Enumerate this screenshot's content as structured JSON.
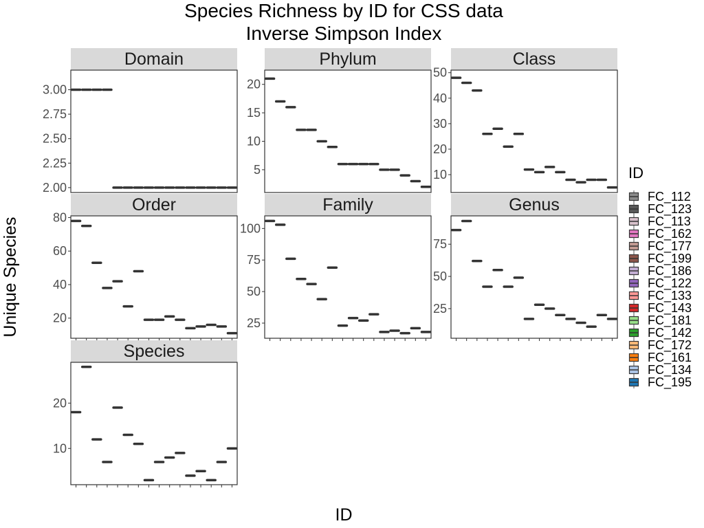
{
  "chart_data": {
    "type": "boxplot",
    "title": "Species Richness by ID for CSS data",
    "subtitle": "Inverse Simpson Index",
    "xlabel": "ID",
    "ylabel": "Unique Species",
    "legend": {
      "title": "ID",
      "placement": "right",
      "entries": [
        "FC_112",
        "FC_123",
        "FC_113",
        "FC_162",
        "FC_177",
        "FC_199",
        "FC_186",
        "FC_122",
        "FC_133",
        "FC_143",
        "FC_181",
        "FC_142",
        "FC_172",
        "FC_161",
        "FC_134",
        "FC_195"
      ],
      "colors": [
        "#8c8c8c",
        "#595959",
        "#d9c2cc",
        "#e377c2",
        "#c49c94",
        "#8c564b",
        "#c5b0d5",
        "#9467bd",
        "#ff9896",
        "#d62728",
        "#98df8a",
        "#2ca02c",
        "#ffbb78",
        "#ff7f0e",
        "#aec7e8",
        "#1f77b4"
      ]
    },
    "facets": [
      {
        "name": "Domain",
        "ylim": [
          1.95,
          3.2
        ],
        "yticks": [
          2.0,
          2.25,
          2.5,
          2.75,
          3.0
        ],
        "tick_labels": [
          "2.00",
          "2.25",
          "2.50",
          "2.75",
          "3.00"
        ],
        "values": [
          3,
          3,
          3,
          3,
          2,
          2,
          2,
          2,
          2,
          2,
          2,
          2,
          2,
          2,
          2,
          2
        ]
      },
      {
        "name": "Phylum",
        "ylim": [
          1,
          22.5
        ],
        "yticks": [
          5,
          10,
          15,
          20
        ],
        "tick_labels": [
          "5",
          "10",
          "15",
          "20"
        ],
        "values": [
          21,
          17,
          16,
          12,
          12,
          10,
          9,
          6,
          6,
          6,
          6,
          5,
          5,
          4,
          3,
          2
        ]
      },
      {
        "name": "Class",
        "ylim": [
          3,
          51
        ],
        "yticks": [
          10,
          20,
          30,
          40,
          50
        ],
        "tick_labels": [
          "10",
          "20",
          "30",
          "40",
          "50"
        ],
        "values": [
          48,
          46,
          43,
          26,
          28,
          21,
          26,
          12,
          11,
          13,
          11,
          8,
          7,
          8,
          8,
          5
        ]
      },
      {
        "name": "Order",
        "ylim": [
          8,
          81
        ],
        "yticks": [
          20,
          40,
          60,
          80
        ],
        "tick_labels": [
          "20",
          "40",
          "60",
          "80"
        ],
        "values": [
          78,
          75,
          53,
          38,
          42,
          27,
          48,
          19,
          19,
          21,
          19,
          14,
          15,
          16,
          15,
          11
        ]
      },
      {
        "name": "Family",
        "ylim": [
          13,
          110
        ],
        "yticks": [
          25,
          50,
          75,
          100
        ],
        "tick_labels": [
          "25",
          "50",
          "75",
          "100"
        ],
        "values": [
          106,
          103,
          76,
          60,
          56,
          44,
          69,
          23,
          29,
          27,
          32,
          18,
          19,
          17,
          21,
          18
        ]
      },
      {
        "name": "Genus",
        "ylim": [
          2,
          97
        ],
        "yticks": [
          25,
          50,
          75
        ],
        "tick_labels": [
          "25",
          "50",
          "75"
        ],
        "values": [
          86,
          93,
          62,
          42,
          55,
          42,
          49,
          17,
          28,
          25,
          20,
          17,
          14,
          11,
          20,
          17
        ]
      },
      {
        "name": "Species",
        "ylim": [
          2,
          29
        ],
        "yticks": [
          10,
          20
        ],
        "tick_labels": [
          "10",
          "20"
        ],
        "values": [
          18,
          28,
          12,
          7,
          19,
          13,
          11,
          3,
          7,
          8,
          9,
          4,
          5,
          3,
          7,
          10
        ]
      }
    ]
  }
}
